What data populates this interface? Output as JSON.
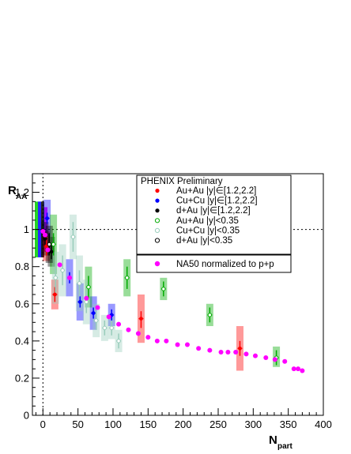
{
  "chart_data": {
    "type": "scatter",
    "title": "",
    "xlabel_main": "N",
    "xlabel_sub": "part",
    "ylabel_main": "R",
    "ylabel_sub": "AA",
    "xlim": [
      -15,
      400
    ],
    "ylim": [
      0,
      1.3
    ],
    "x_ticks": [
      0,
      50,
      100,
      150,
      200,
      250,
      300,
      350,
      400
    ],
    "y_ticks": [
      0,
      0.2,
      0.4,
      0.6,
      0.8,
      1,
      1.2
    ],
    "y_tick_labels": [
      "0",
      "0.2",
      "0.4",
      "0.6",
      "0.8",
      "1",
      "1.2"
    ],
    "reference_line_y": 1,
    "reference_line_x": 0,
    "global_uncertainty_bands": [
      {
        "color": "#00cc00",
        "low": 0.85,
        "high": 1.15
      },
      {
        "color": "#0000ff",
        "low": 0.85,
        "high": 1.15
      },
      {
        "color": "#000000",
        "low": 0.85,
        "high": 1.15
      },
      {
        "color": "#ff00ff",
        "low": 0.88,
        "high": 1.12
      }
    ],
    "legend": {
      "header": "PHENIX Preliminary",
      "entries": [
        "Au+Au |y|∈[1.2,2.2]",
        "Cu+Cu |y|∈[1.2,2.2]",
        "d+Au |y|∈[1.2,2.2]",
        "Au+Au |y|<0.35",
        "Cu+Cu |y|<0.35",
        "d+Au |y|<0.35"
      ],
      "secondary": "NA50 normalized to p+p"
    },
    "series": [
      {
        "name": "Au+Au |y|∈[1.2,2.2]",
        "color": "#ff0000",
        "marker": "filled",
        "points": [
          {
            "x": 5,
            "y": 0.91,
            "ylo": 0.86,
            "yhi": 0.96,
            "slo": 0.83,
            "shi": 0.99
          },
          {
            "x": 17,
            "y": 0.65,
            "ylo": 0.61,
            "yhi": 0.69,
            "slo": 0.57,
            "shi": 0.73
          },
          {
            "x": 140,
            "y": 0.52,
            "ylo": 0.47,
            "yhi": 0.56,
            "slo": 0.39,
            "shi": 0.65
          },
          {
            "x": 281,
            "y": 0.36,
            "ylo": 0.32,
            "yhi": 0.4,
            "slo": 0.24,
            "shi": 0.48
          }
        ]
      },
      {
        "name": "Cu+Cu |y|∈[1.2,2.2]",
        "color": "#0000ff",
        "marker": "filled",
        "points": [
          {
            "x": 6,
            "y": 1.06,
            "ylo": 1.03,
            "yhi": 1.09,
            "slo": 0.96,
            "shi": 1.16
          },
          {
            "x": 38,
            "y": 0.74,
            "ylo": 0.71,
            "yhi": 0.77,
            "slo": 0.64,
            "shi": 0.84
          },
          {
            "x": 53,
            "y": 0.61,
            "ylo": 0.58,
            "yhi": 0.64,
            "slo": 0.51,
            "shi": 0.71
          },
          {
            "x": 72,
            "y": 0.55,
            "ylo": 0.52,
            "yhi": 0.58,
            "slo": 0.46,
            "shi": 0.64
          },
          {
            "x": 98,
            "y": 0.54,
            "ylo": 0.51,
            "yhi": 0.57,
            "slo": 0.48,
            "shi": 0.6
          }
        ]
      },
      {
        "name": "d+Au |y|∈[1.2,2.2]",
        "color": "#000000",
        "marker": "filled",
        "points": [
          {
            "x": 3,
            "y": 0.95,
            "ylo": 0.91,
            "yhi": 0.99,
            "slo": 0.86,
            "shi": 1.04
          },
          {
            "x": 12,
            "y": 0.88,
            "ylo": 0.84,
            "yhi": 0.92,
            "slo": 0.8,
            "shi": 0.96
          }
        ]
      },
      {
        "name": "Au+Au |y|<0.35",
        "color": "#00aa00",
        "marker": "open",
        "points": [
          {
            "x": 15,
            "y": 0.92,
            "ylo": 0.86,
            "yhi": 0.98,
            "slo": 0.76,
            "shi": 1.08
          },
          {
            "x": 65,
            "y": 0.69,
            "ylo": 0.63,
            "yhi": 0.75,
            "slo": 0.58,
            "shi": 0.8
          },
          {
            "x": 120,
            "y": 0.74,
            "ylo": 0.68,
            "yhi": 0.8,
            "slo": 0.64,
            "shi": 0.84
          },
          {
            "x": 172,
            "y": 0.68,
            "ylo": 0.64,
            "yhi": 0.72,
            "slo": 0.62,
            "shi": 0.74
          },
          {
            "x": 238,
            "y": 0.54,
            "ylo": 0.5,
            "yhi": 0.58,
            "slo": 0.48,
            "shi": 0.6
          },
          {
            "x": 333,
            "y": 0.31,
            "ylo": 0.27,
            "yhi": 0.35,
            "slo": 0.26,
            "shi": 0.37
          }
        ]
      },
      {
        "name": "Cu+Cu |y|<0.35",
        "color": "#99ccbb",
        "marker": "open",
        "points": [
          {
            "x": 18,
            "y": 0.74,
            "ylo": 0.66,
            "yhi": 0.82,
            "slo": 0.6,
            "shi": 0.88
          },
          {
            "x": 28,
            "y": 0.78,
            "ylo": 0.7,
            "yhi": 0.86,
            "slo": 0.64,
            "shi": 0.92
          },
          {
            "x": 43,
            "y": 0.96,
            "ylo": 0.88,
            "yhi": 1.04,
            "slo": 0.84,
            "shi": 1.08
          },
          {
            "x": 52,
            "y": 0.71,
            "ylo": 0.64,
            "yhi": 0.78,
            "slo": 0.56,
            "shi": 0.86
          },
          {
            "x": 62,
            "y": 0.61,
            "ylo": 0.55,
            "yhi": 0.67,
            "slo": 0.49,
            "shi": 0.73
          },
          {
            "x": 76,
            "y": 0.51,
            "ylo": 0.46,
            "yhi": 0.56,
            "slo": 0.42,
            "shi": 0.6
          },
          {
            "x": 88,
            "y": 0.47,
            "ylo": 0.43,
            "yhi": 0.51,
            "slo": 0.4,
            "shi": 0.54
          },
          {
            "x": 98,
            "y": 0.47,
            "ylo": 0.43,
            "yhi": 0.51,
            "slo": 0.41,
            "shi": 0.53
          },
          {
            "x": 108,
            "y": 0.4,
            "ylo": 0.36,
            "yhi": 0.44,
            "slo": 0.34,
            "shi": 0.46
          }
        ]
      },
      {
        "name": "d+Au |y|<0.35",
        "color": "#000000",
        "marker": "open",
        "points": [
          {
            "x": 9,
            "y": 0.92,
            "ylo": 0.86,
            "yhi": 0.98,
            "slo": 0.82,
            "shi": 1.02
          }
        ]
      },
      {
        "name": "NA50 normalized to p+p",
        "color": "#ff00ff",
        "marker": "filled-large",
        "points": [
          {
            "x": 0,
            "y": 0.99
          },
          {
            "x": 3,
            "y": 0.97
          },
          {
            "x": 7,
            "y": 0.89
          },
          {
            "x": 24,
            "y": 0.81
          },
          {
            "x": 38,
            "y": 0.74
          },
          {
            "x": 62,
            "y": 0.63
          },
          {
            "x": 78,
            "y": 0.58
          },
          {
            "x": 94,
            "y": 0.53
          },
          {
            "x": 108,
            "y": 0.49
          },
          {
            "x": 122,
            "y": 0.46
          },
          {
            "x": 136,
            "y": 0.44
          },
          {
            "x": 150,
            "y": 0.42
          },
          {
            "x": 163,
            "y": 0.4
          },
          {
            "x": 176,
            "y": 0.4
          },
          {
            "x": 192,
            "y": 0.38
          },
          {
            "x": 206,
            "y": 0.38
          },
          {
            "x": 222,
            "y": 0.36
          },
          {
            "x": 238,
            "y": 0.35
          },
          {
            "x": 254,
            "y": 0.34
          },
          {
            "x": 264,
            "y": 0.34
          },
          {
            "x": 275,
            "y": 0.34
          },
          {
            "x": 290,
            "y": 0.33
          },
          {
            "x": 303,
            "y": 0.32
          },
          {
            "x": 318,
            "y": 0.31
          },
          {
            "x": 331,
            "y": 0.3
          },
          {
            "x": 345,
            "y": 0.29
          },
          {
            "x": 358,
            "y": 0.25
          },
          {
            "x": 364,
            "y": 0.25
          },
          {
            "x": 370,
            "y": 0.24
          }
        ]
      }
    ]
  }
}
